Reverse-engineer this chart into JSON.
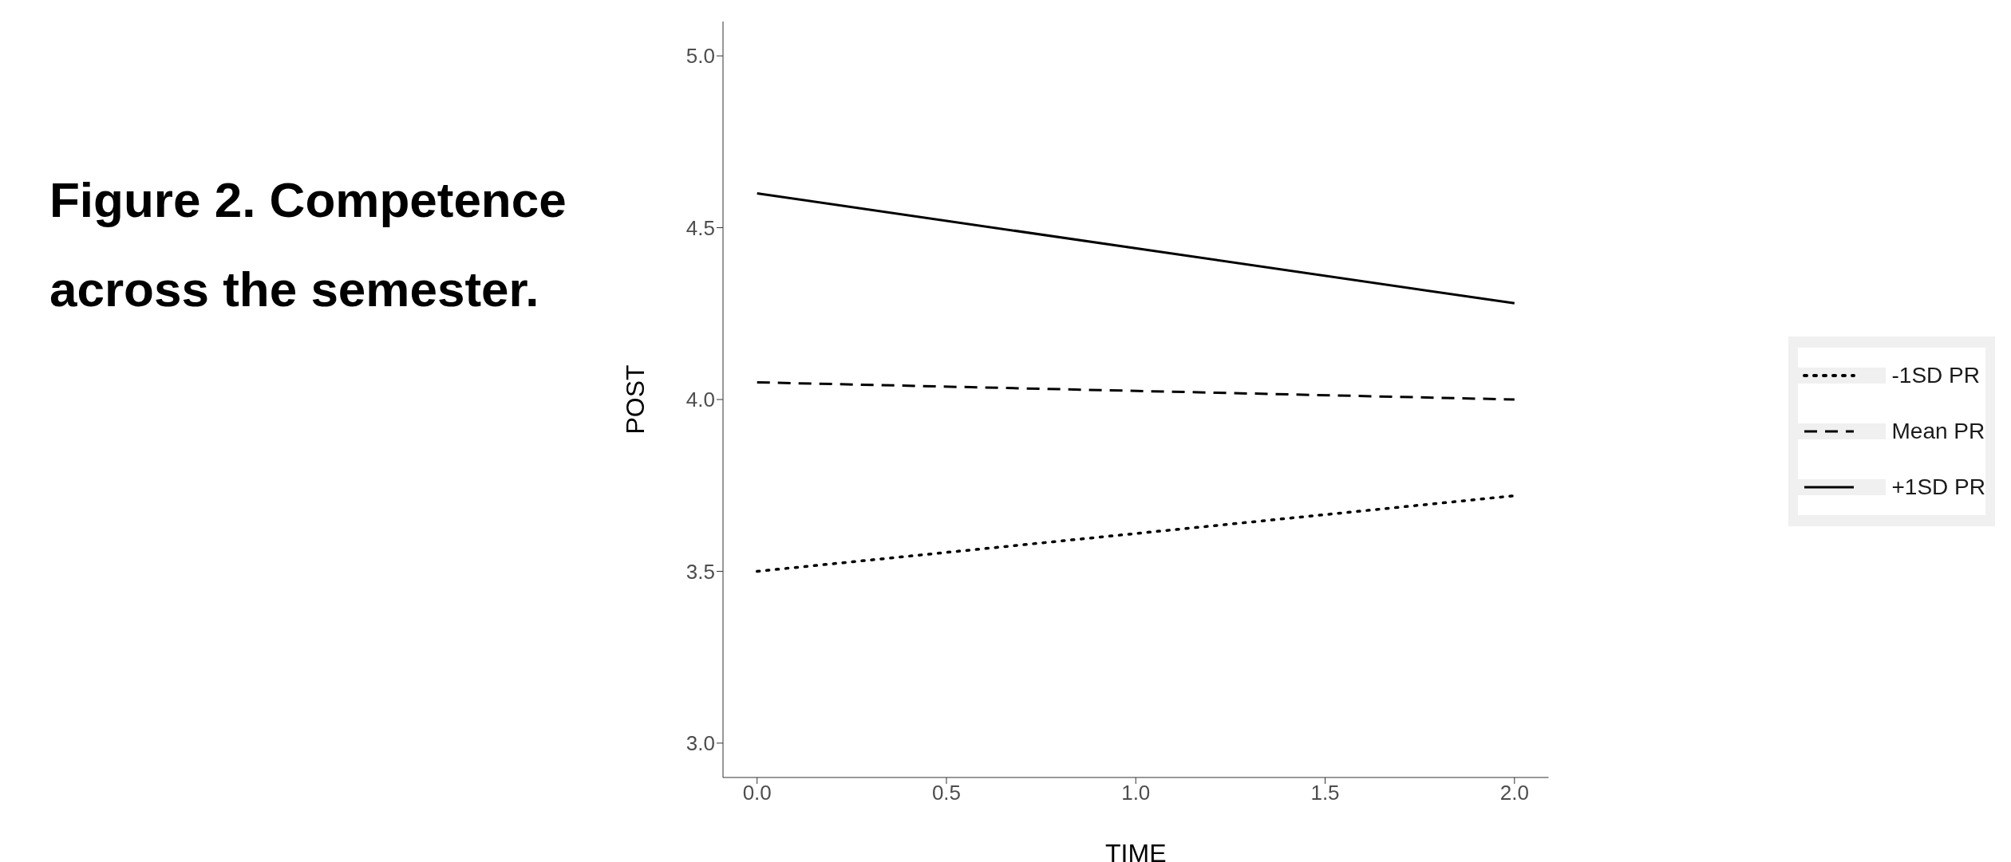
{
  "chart_data": {
    "type": "line",
    "title": "Figure 2. Competence across the semester.",
    "xlabel": "TIME",
    "ylabel": "POST",
    "x": [
      0,
      2
    ],
    "series": [
      {
        "name": "-1SD PR",
        "color": "#000000",
        "values": [
          3.5,
          3.72
        ],
        "line_style": "dotted"
      },
      {
        "name": "Mean PR",
        "color": "#000000",
        "values": [
          4.05,
          4.0
        ],
        "line_style": "dashed"
      },
      {
        "name": "+1SD PR",
        "color": "#000000",
        "values": [
          4.6,
          4.28
        ],
        "line_style": "solid"
      }
    ],
    "xlim": [
      -0.09,
      2.09
    ],
    "xticks": [
      {
        "value": 0,
        "label": "0.0"
      },
      {
        "value": 0.5,
        "label": "0.5"
      },
      {
        "value": 1,
        "label": "1.0"
      },
      {
        "value": 1.5,
        "label": "1.5"
      },
      {
        "value": 2,
        "label": "2.0"
      }
    ],
    "ylim": [
      2.9,
      5.1
    ],
    "yticks": [
      {
        "value": 3,
        "label": "3.0"
      },
      {
        "value": 3.5,
        "label": "3.5"
      },
      {
        "value": 4,
        "label": "4.0"
      },
      {
        "value": 4.5,
        "label": "4.5"
      },
      {
        "value": 5,
        "label": "5.0"
      }
    ],
    "grid": false,
    "legend": "right",
    "marker": "none"
  }
}
